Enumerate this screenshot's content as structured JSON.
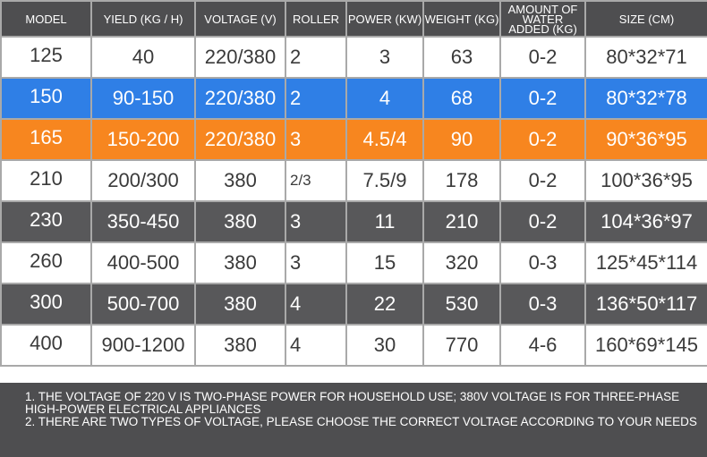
{
  "table": {
    "headers": [
      "MODEL",
      "YIELD (KG / H)",
      "VOLTAGE (V)",
      "ROLLER",
      "POWER (KW)",
      "WEIGHT (KG)",
      "AMOUNT OF WATER ADDED (KG)",
      "SIZE (CM)"
    ],
    "rows": [
      {
        "style": "white",
        "cells": [
          "125",
          "40",
          "220/380",
          "2",
          "3",
          "63",
          "0-2",
          "80*32*71"
        ]
      },
      {
        "style": "blue",
        "cells": [
          "150",
          "90-150",
          "220/380",
          "2",
          "4",
          "68",
          "0-2",
          "80*32*78"
        ]
      },
      {
        "style": "orange",
        "cells": [
          "165",
          "150-200",
          "220/380",
          "3",
          "4.5/4",
          "90",
          "0-2",
          "90*36*95"
        ]
      },
      {
        "style": "white",
        "cells": [
          "210",
          "200/300",
          "380",
          "2/3",
          "7.5/9",
          "178",
          "0-2",
          "100*36*95"
        ]
      },
      {
        "style": "dark",
        "cells": [
          "230",
          "350-450",
          "380",
          "3",
          "11",
          "210",
          "0-2",
          "104*36*97"
        ]
      },
      {
        "style": "white",
        "cells": [
          "260",
          "400-500",
          "380",
          "3",
          "15",
          "320",
          "0-3",
          "125*45*114"
        ]
      },
      {
        "style": "dark",
        "cells": [
          "300",
          "500-700",
          "380",
          "4",
          "22",
          "530",
          "0-3",
          "136*50*117"
        ]
      },
      {
        "style": "white",
        "cells": [
          "400",
          "900-1200",
          "380",
          "4",
          "30",
          "770",
          "4-6",
          "160*69*145"
        ]
      }
    ]
  },
  "notes": [
    "1. THE VOLTAGE OF 220 V IS TWO-PHASE POWER FOR HOUSEHOLD USE; 380V VOLTAGE IS FOR THREE-PHASE HIGH-POWER ELECTRICAL APPLIANCES",
    "2. THERE ARE TWO TYPES OF VOLTAGE, PLEASE CHOOSE THE CORRECT VOLTAGE ACCORDING TO YOUR NEEDS"
  ],
  "colors": {
    "header_bg": "#4e4e50",
    "dark_row": "#58585a",
    "blue_row": "#2f7fe6",
    "orange_row": "#f7861f",
    "grid_line": "#a9a9a9"
  }
}
